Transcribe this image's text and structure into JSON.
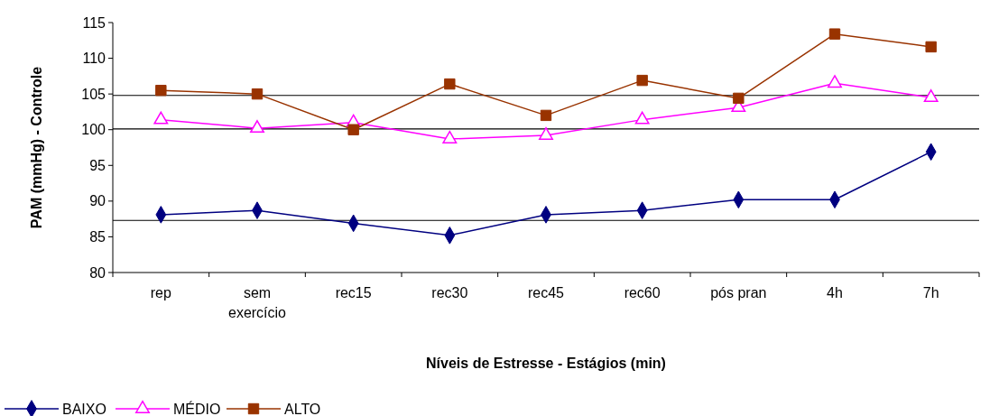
{
  "chart_data": {
    "type": "line",
    "xlabel": "Níveis de Estresse - Estágios (min)",
    "ylabel": "PAM (mmHg) - Controle",
    "categories": [
      "rep",
      "sem exercício",
      "rec15",
      "rec30",
      "rec45",
      "rec60",
      "pós pran",
      "4h",
      "7h"
    ],
    "series": [
      {
        "name": "BAIXO",
        "color": "#000080",
        "marker": "diamond",
        "values": [
          88.1,
          88.7,
          86.9,
          85.2,
          88.1,
          88.7,
          90.2,
          90.2,
          96.9
        ]
      },
      {
        "name": "MÉDIO",
        "color": "#ff00ff",
        "marker": "triangle",
        "values": [
          101.4,
          100.2,
          101.0,
          98.7,
          99.2,
          101.4,
          103.1,
          106.5,
          104.5
        ]
      },
      {
        "name": "ALTO",
        "color": "#993300",
        "marker": "square",
        "values": [
          105.5,
          105.0,
          100.0,
          106.4,
          102.0,
          106.9,
          104.4,
          113.4,
          111.6
        ]
      }
    ],
    "ylim": [
      80,
      115
    ],
    "yticks": [
      80,
      85,
      90,
      95,
      100,
      105,
      110,
      115
    ],
    "ref_lines": [
      {
        "axis": "y",
        "value": 104.8,
        "color": "#000000"
      },
      {
        "axis": "y",
        "value": 100.1,
        "color": "#000000"
      },
      {
        "axis": "y",
        "value": 87.3,
        "color": "#000000"
      }
    ],
    "grid": false,
    "legend": "bottom left"
  }
}
